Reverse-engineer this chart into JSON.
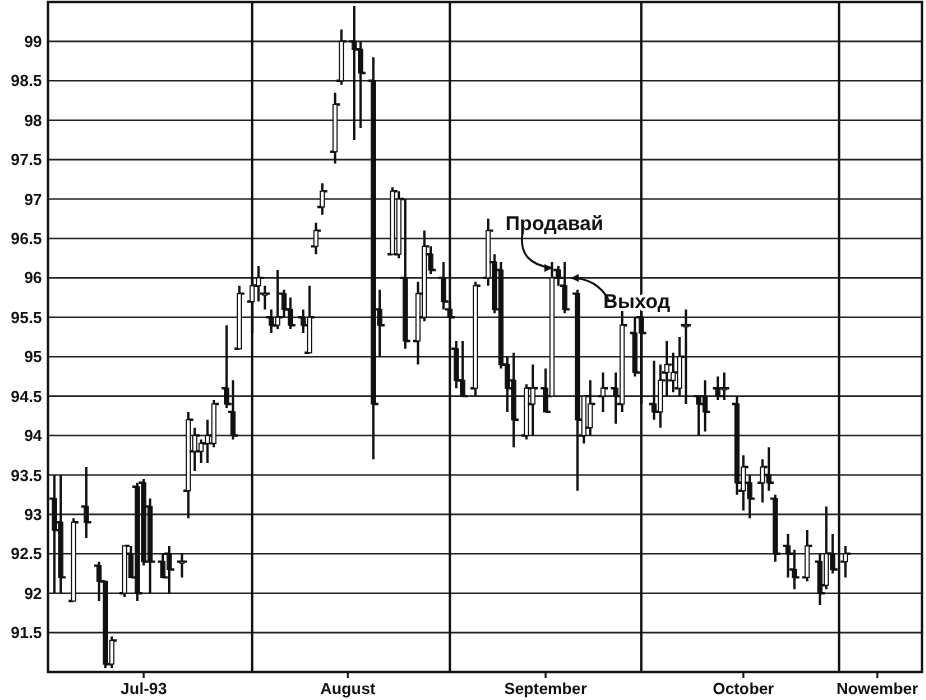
{
  "chart_data": {
    "type": "candlestick",
    "x": [
      "1993-07-01",
      "1993-07-02",
      "1993-07-04",
      "1993-07-06",
      "1993-07-08",
      "1993-07-09",
      "1993-07-10",
      "1993-07-12",
      "1993-07-13",
      "1993-07-14",
      "1993-07-15",
      "1993-07-16",
      "1993-07-18",
      "1993-07-19",
      "1993-07-21",
      "1993-07-22",
      "1993-07-23",
      "1993-07-24",
      "1993-07-25",
      "1993-07-26",
      "1993-07-28",
      "1993-07-29",
      "1993-07-30",
      "1993-08-01",
      "1993-08-02",
      "1993-08-03",
      "1993-08-04",
      "1993-08-05",
      "1993-08-06",
      "1993-08-07",
      "1993-08-09",
      "1993-08-10",
      "1993-08-11",
      "1993-08-12",
      "1993-08-14",
      "1993-08-15",
      "1993-08-17",
      "1993-08-18",
      "1993-08-20",
      "1993-08-21",
      "1993-08-23",
      "1993-08-24",
      "1993-08-25",
      "1993-08-27",
      "1993-08-28",
      "1993-08-29",
      "1993-08-31",
      "1993-09-01",
      "1993-09-02",
      "1993-09-03",
      "1993-09-05",
      "1993-09-07",
      "1993-09-08",
      "1993-09-09",
      "1993-09-10",
      "1993-09-11",
      "1993-09-13",
      "1993-09-14",
      "1993-09-16",
      "1993-09-17",
      "1993-09-18",
      "1993-09-19",
      "1993-09-21",
      "1993-09-22",
      "1993-09-23",
      "1993-09-25",
      "1993-09-27",
      "1993-09-28",
      "1993-09-30",
      "1993-10-01",
      "1993-10-03",
      "1993-10-04",
      "1993-10-05",
      "1993-10-06",
      "1993-10-07",
      "1993-10-08",
      "1993-10-10",
      "1993-10-11",
      "1993-10-13",
      "1993-10-14",
      "1993-10-16",
      "1993-10-17",
      "1993-10-18",
      "1993-10-20",
      "1993-10-21",
      "1993-10-22",
      "1993-10-24",
      "1993-10-25",
      "1993-10-27",
      "1993-10-29",
      "1993-10-30",
      "1993-10-31",
      "1993-11-02"
    ],
    "ohlc": [
      [
        93.2,
        93.5,
        92.0,
        92.8
      ],
      [
        92.9,
        93.5,
        92.0,
        92.2
      ],
      [
        91.9,
        92.95,
        91.9,
        92.9
      ],
      [
        93.1,
        93.6,
        92.7,
        92.9
      ],
      [
        92.35,
        92.4,
        91.9,
        92.15
      ],
      [
        92.15,
        92.15,
        91.05,
        91.1
      ],
      [
        91.1,
        91.45,
        91.05,
        91.4
      ],
      [
        92.0,
        92.6,
        91.95,
        92.6
      ],
      [
        92.5,
        92.6,
        92.2,
        92.2
      ],
      [
        93.35,
        93.4,
        91.9,
        92.0
      ],
      [
        93.4,
        93.45,
        92.35,
        92.4
      ],
      [
        93.1,
        93.2,
        92.0,
        92.4
      ],
      [
        92.4,
        92.5,
        92.2,
        92.2
      ],
      [
        92.5,
        92.6,
        92.0,
        92.3
      ],
      [
        92.4,
        92.5,
        92.2,
        92.4
      ],
      [
        93.3,
        94.3,
        92.95,
        94.2
      ],
      [
        93.8,
        94.1,
        93.55,
        94.0
      ],
      [
        93.8,
        93.95,
        93.65,
        93.9
      ],
      [
        93.9,
        94.2,
        93.65,
        94.0
      ],
      [
        93.9,
        94.45,
        93.85,
        94.4
      ],
      [
        94.6,
        95.4,
        94.35,
        94.4
      ],
      [
        94.3,
        94.7,
        93.95,
        94.0
      ],
      [
        95.1,
        95.9,
        95.1,
        95.8
      ],
      [
        95.7,
        96.0,
        95.3,
        95.9
      ],
      [
        95.9,
        96.15,
        95.7,
        96.0
      ],
      [
        95.8,
        95.9,
        95.6,
        95.8
      ],
      [
        95.5,
        95.6,
        95.3,
        95.4
      ],
      [
        95.4,
        96.1,
        95.35,
        95.5
      ],
      [
        95.8,
        95.85,
        95.5,
        95.6
      ],
      [
        95.6,
        95.75,
        95.35,
        95.4
      ],
      [
        95.5,
        95.6,
        95.3,
        95.4
      ],
      [
        95.05,
        95.9,
        95.05,
        95.5
      ],
      [
        96.4,
        96.7,
        96.3,
        96.6
      ],
      [
        96.9,
        97.2,
        96.8,
        97.1
      ],
      [
        97.6,
        98.35,
        97.45,
        98.2
      ],
      [
        98.5,
        99.15,
        98.45,
        99.0
      ],
      [
        99.0,
        99.45,
        97.75,
        98.9
      ],
      [
        98.9,
        99.0,
        97.9,
        98.6
      ],
      [
        98.5,
        98.8,
        93.7,
        94.4
      ],
      [
        95.6,
        95.85,
        95.0,
        95.4
      ],
      [
        96.3,
        97.15,
        96.3,
        97.1
      ],
      [
        96.3,
        97.1,
        96.25,
        97.0
      ],
      [
        96.0,
        97.0,
        95.1,
        95.2
      ],
      [
        95.2,
        95.95,
        94.9,
        95.8
      ],
      [
        95.5,
        96.6,
        95.45,
        96.4
      ],
      [
        96.3,
        96.4,
        96.05,
        96.1
      ],
      [
        96.0,
        96.2,
        95.6,
        95.7
      ],
      [
        95.6,
        95.7,
        95.5,
        95.5
      ],
      [
        95.1,
        95.2,
        94.6,
        94.7
      ],
      [
        94.7,
        95.2,
        94.5,
        94.5
      ],
      [
        94.6,
        95.95,
        94.5,
        95.9
      ],
      [
        96.0,
        96.75,
        95.9,
        96.6
      ],
      [
        96.2,
        96.3,
        95.55,
        95.6
      ],
      [
        96.1,
        96.2,
        94.85,
        94.9
      ],
      [
        94.9,
        95.0,
        94.3,
        94.6
      ],
      [
        94.7,
        95.05,
        93.85,
        94.2
      ],
      [
        94.0,
        94.65,
        93.95,
        94.6
      ],
      [
        94.4,
        94.9,
        94.0,
        94.6
      ],
      [
        94.6,
        94.85,
        94.3,
        94.3
      ],
      [
        94.5,
        96.2,
        94.5,
        96.0
      ],
      [
        96.1,
        96.15,
        95.9,
        96.0
      ],
      [
        95.9,
        96.2,
        95.55,
        95.6
      ],
      [
        95.8,
        95.85,
        93.3,
        94.2
      ],
      [
        94.0,
        94.5,
        93.9,
        94.5
      ],
      [
        94.1,
        94.7,
        94.0,
        94.4
      ],
      [
        94.5,
        94.8,
        94.3,
        94.6
      ],
      [
        94.6,
        94.8,
        94.15,
        94.5
      ],
      [
        94.4,
        95.6,
        94.3,
        95.4
      ],
      [
        95.3,
        95.5,
        94.75,
        94.8
      ],
      [
        95.5,
        95.6,
        94.4,
        95.3
      ],
      [
        94.4,
        94.95,
        94.2,
        94.3
      ],
      [
        94.3,
        94.9,
        94.1,
        94.7
      ],
      [
        94.8,
        95.2,
        94.5,
        94.9
      ],
      [
        94.7,
        95.05,
        94.55,
        94.8
      ],
      [
        94.6,
        95.25,
        94.5,
        95.0
      ],
      [
        95.4,
        95.6,
        94.4,
        95.4
      ],
      [
        94.5,
        94.5,
        94.0,
        94.4
      ],
      [
        94.5,
        94.7,
        94.05,
        94.3
      ],
      [
        94.6,
        94.75,
        94.45,
        94.5
      ],
      [
        94.6,
        94.8,
        94.45,
        94.6
      ],
      [
        94.4,
        94.5,
        93.25,
        93.4
      ],
      [
        93.3,
        93.75,
        93.05,
        93.6
      ],
      [
        93.4,
        93.5,
        92.95,
        93.2
      ],
      [
        93.4,
        93.7,
        93.15,
        93.6
      ],
      [
        93.5,
        93.85,
        93.3,
        93.4
      ],
      [
        93.2,
        93.25,
        92.4,
        92.5
      ],
      [
        92.6,
        92.75,
        92.2,
        92.5
      ],
      [
        92.3,
        92.55,
        92.05,
        92.2
      ],
      [
        92.2,
        92.8,
        92.15,
        92.6
      ],
      [
        92.4,
        92.5,
        91.85,
        92.0
      ],
      [
        92.1,
        93.1,
        92.05,
        92.5
      ],
      [
        92.5,
        92.75,
        92.25,
        92.3
      ],
      [
        92.4,
        92.6,
        92.2,
        92.5
      ]
    ],
    "color": "#111111",
    "xlim": [
      "1993-06-30",
      "1993-11-14"
    ],
    "xticks": [
      {
        "value": "1993-07-15",
        "label": "Jul-93"
      },
      {
        "value": "1993-08-16",
        "label": "August"
      },
      {
        "value": "1993-09-16",
        "label": "September"
      },
      {
        "value": "1993-10-17",
        "label": "October"
      },
      {
        "value": "1993-11-07",
        "label": "Nowember"
      }
    ],
    "ylim": [
      91.0,
      99.5
    ],
    "yticks": [
      91.5,
      92.0,
      92.5,
      93.0,
      93.5,
      94.0,
      94.5,
      95.0,
      95.5,
      96.0,
      96.5,
      97.0,
      97.5,
      98.0,
      98.5,
      99.0
    ],
    "grid": "y",
    "ref_lines": [
      {
        "axis": "x",
        "value": "1993-08-01"
      },
      {
        "axis": "x",
        "value": "1993-09-01"
      },
      {
        "axis": "x",
        "value": "1993-10-01"
      },
      {
        "axis": "x",
        "value": "1993-11-01"
      }
    ],
    "annotations": [
      {
        "text": "Продавай",
        "x": "1993-09-18",
        "y": 96.1
      },
      {
        "text": "Выход",
        "x": "1993-09-19",
        "y": 96.0
      }
    ]
  }
}
